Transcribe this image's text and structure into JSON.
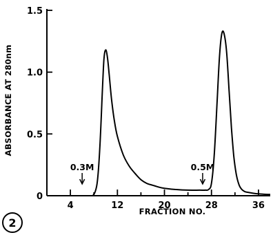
{
  "panel_label": "2",
  "chart_data": {
    "type": "line",
    "xlabel": "FRACTION NO.",
    "ylabel": "ABSORBANCE AT 280nm",
    "xlim": [
      0,
      38
    ],
    "ylim": [
      0,
      1.5
    ],
    "x_ticks": [
      4,
      12,
      20,
      28,
      36
    ],
    "x_tick_labels": [
      "4",
      "12",
      "20",
      "28",
      "36"
    ],
    "y_ticks": [
      0,
      0.5,
      1.0,
      1.5
    ],
    "y_tick_labels": [
      "0",
      "0.5",
      "1.0",
      "1.5"
    ],
    "series": [
      {
        "x": [
          7.8,
          8.2,
          8.6,
          9.0,
          9.4,
          9.7,
          10.0,
          10.3,
          10.6,
          11.0,
          11.5,
          12.0,
          13.0,
          14.0,
          15.0,
          16.0,
          17.0,
          18.0,
          19.0,
          20.0,
          22.0,
          24.0,
          26.0,
          27.0,
          27.5,
          28.0,
          28.5,
          29.0,
          29.4,
          29.8,
          30.2,
          30.6,
          31.0,
          31.4,
          31.8,
          32.2,
          32.6,
          33.0,
          33.6,
          34.5,
          36.0,
          38.0
        ],
        "y": [
          0.0,
          0.03,
          0.12,
          0.38,
          0.8,
          1.1,
          1.18,
          1.12,
          0.98,
          0.78,
          0.6,
          0.48,
          0.33,
          0.24,
          0.18,
          0.13,
          0.1,
          0.085,
          0.07,
          0.06,
          0.05,
          0.045,
          0.045,
          0.045,
          0.05,
          0.1,
          0.35,
          0.8,
          1.15,
          1.32,
          1.3,
          1.15,
          0.85,
          0.55,
          0.32,
          0.18,
          0.1,
          0.06,
          0.035,
          0.025,
          0.015,
          0.01
        ]
      }
    ],
    "annotations": [
      {
        "text": "0.3M",
        "x": 6.0
      },
      {
        "text": "0.5M",
        "x": 26.5
      }
    ]
  }
}
